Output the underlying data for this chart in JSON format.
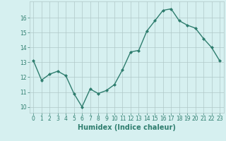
{
  "x": [
    0,
    1,
    2,
    3,
    4,
    5,
    6,
    7,
    8,
    9,
    10,
    11,
    12,
    13,
    14,
    15,
    16,
    17,
    18,
    19,
    20,
    21,
    22,
    23
  ],
  "y": [
    13.1,
    11.8,
    12.2,
    12.4,
    12.1,
    10.9,
    10.0,
    11.2,
    10.9,
    11.1,
    11.5,
    12.5,
    13.7,
    13.8,
    15.1,
    15.8,
    16.5,
    16.6,
    15.8,
    15.5,
    15.3,
    14.6,
    14.0,
    13.1
  ],
  "line_color": "#2e7d6e",
  "marker": "D",
  "markersize": 2.0,
  "linewidth": 1.0,
  "xlabel": "Humidex (Indice chaleur)",
  "ylabel": "",
  "title": "",
  "bg_color": "#d6f0f0",
  "grid_color": "#b0c8c8",
  "xlim": [
    -0.5,
    23.5
  ],
  "ylim": [
    9.6,
    17.1
  ],
  "yticks": [
    10,
    11,
    12,
    13,
    14,
    15,
    16
  ],
  "xticks": [
    0,
    1,
    2,
    3,
    4,
    5,
    6,
    7,
    8,
    9,
    10,
    11,
    12,
    13,
    14,
    15,
    16,
    17,
    18,
    19,
    20,
    21,
    22,
    23
  ],
  "tick_color": "#2e7d6e",
  "tick_fontsize": 5.5,
  "xlabel_fontsize": 7,
  "xlabel_color": "#2e7d6e",
  "xlabel_weight": "bold"
}
